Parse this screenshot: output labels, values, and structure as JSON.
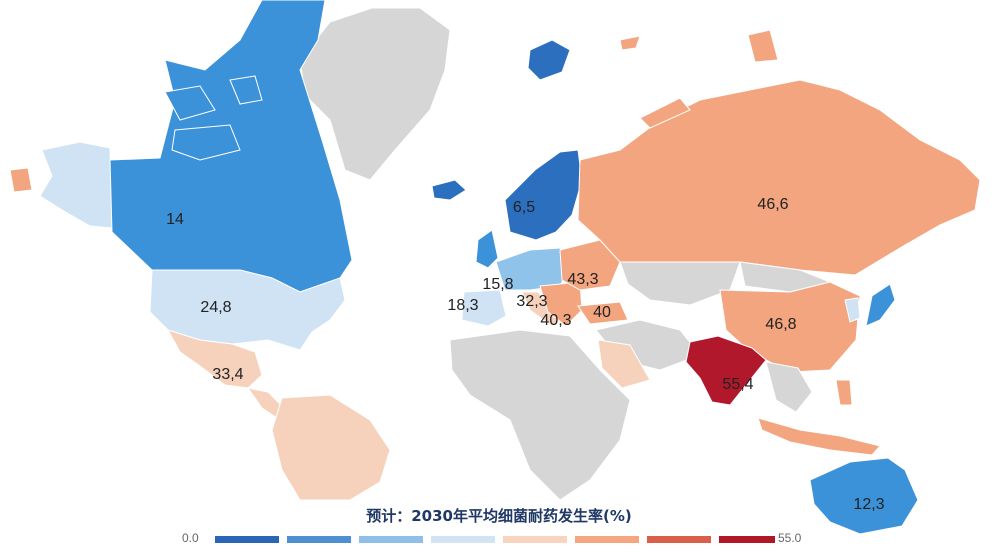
{
  "map": {
    "title": "预计：2030年平均细菌耐药发生率(%)",
    "colors": {
      "no_data": "#d6d6d6",
      "blue_dark": "#2c6fbe",
      "blue_mid": "#3c92d9",
      "blue_light": "#8fc3ea",
      "blue_pale": "#cfe3f4",
      "orange_pale": "#f6d2bd",
      "orange_mid": "#f3a57f",
      "red_dark": "#b1182b"
    },
    "labels": {
      "canada": "14",
      "usa": "24,8",
      "mexico": "33,4",
      "sweden": "6,5",
      "germany": "15,8",
      "spain": "18,3",
      "italy": "32,3",
      "greece": "40,3",
      "turkey": "40",
      "east_europe": "43,3",
      "russia": "46,6",
      "china": "46,8",
      "india": "55,4",
      "australia": "12,3"
    },
    "legend": {
      "min_label": "0.0",
      "max_label": "55.0",
      "bins": [
        "#2a66b3",
        "#4d8fd1",
        "#8fbfe6",
        "#d2e4f4",
        "#f7d4bf",
        "#f3a680",
        "#d95f4a",
        "#b0182a"
      ]
    }
  }
}
